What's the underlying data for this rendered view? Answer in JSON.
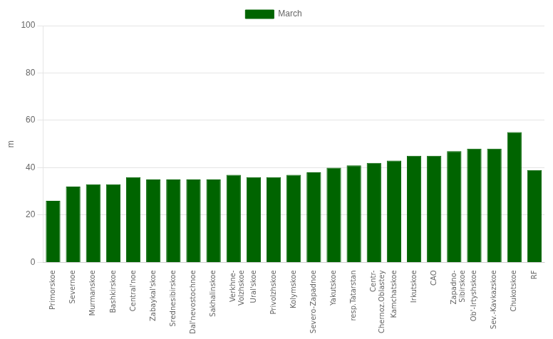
{
  "chart_data": {
    "type": "bar",
    "categories": [
      "Primorskoe",
      "Severnoe",
      "Murmanskoe",
      "Bashkirskoe",
      "Central'noe",
      "Zabaykal'skoe",
      "Srednesibirskoe",
      "Dal'nevostochnoe",
      "Sakhalinskoe",
      "Verkhne-\nVolzhskoe",
      "Ural'skoe",
      "Privolzhskoe",
      "Kolymskoe",
      "Severo-Zapadnoe",
      "Yakutskoe",
      "resp.Tatarstan",
      "Centr-\nChernoz.Oblastey",
      "Kamchatskoe",
      "Irkutskoe",
      "CAO",
      "Zapadno-\nSibirskoe",
      "Ob'-Irtyshskoe",
      "Sev.-Kavkazskoe",
      "Chukotskoe",
      "RF"
    ],
    "series": [
      {
        "name": "March",
        "color": "#006400",
        "values": [
          26,
          32,
          33,
          33,
          36,
          35,
          35,
          35,
          35,
          37,
          36,
          36,
          37,
          38,
          40,
          41,
          42,
          43,
          45,
          45,
          47,
          48,
          48,
          55,
          39
        ]
      }
    ],
    "y_label": "m",
    "ylim": [
      0,
      100
    ],
    "yticks": [
      0,
      20,
      40,
      60,
      80,
      100
    ],
    "grid": true,
    "legend": "top"
  }
}
